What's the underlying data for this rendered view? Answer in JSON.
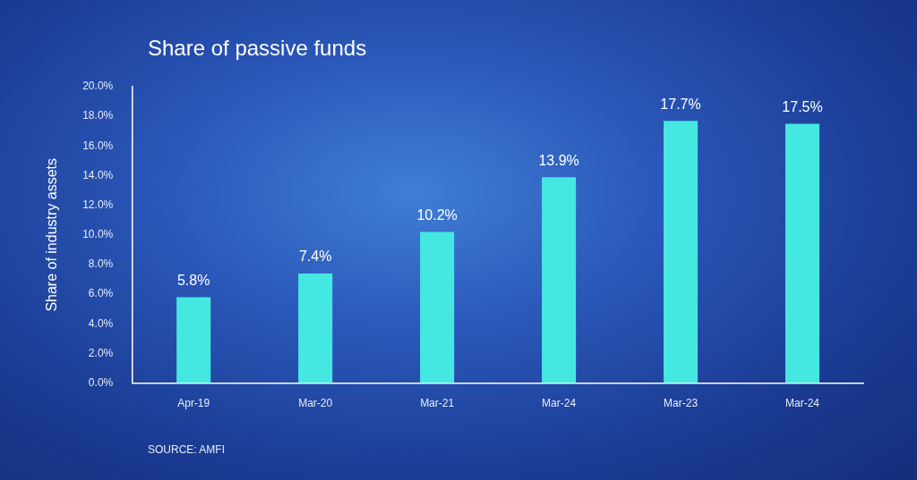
{
  "chart_data": {
    "type": "bar",
    "title": "Share of passive funds",
    "y_label": "Share of industry assets",
    "source": "SOURCE: AMFI",
    "categories": [
      "Apr-19",
      "Mar-20",
      "Mar-21",
      "Mar-24",
      "Mar-23",
      "Mar-24"
    ],
    "values": [
      5.8,
      7.4,
      10.2,
      13.9,
      17.7,
      17.5
    ],
    "value_labels": [
      "5.8%",
      "7.4%",
      "10.2%",
      "13.9%",
      "17.7%",
      "17.5%"
    ],
    "color": "#45e8e0",
    "ylim": [
      0,
      20
    ],
    "yticks": [
      {
        "value": 0,
        "label": "0.0%"
      },
      {
        "value": 2,
        "label": "2.0%"
      },
      {
        "value": 4,
        "label": "4.0%"
      },
      {
        "value": 6,
        "label": "6.0%"
      },
      {
        "value": 8,
        "label": "8.0%"
      },
      {
        "value": 10,
        "label": "10.0%"
      },
      {
        "value": 12,
        "label": "12.0%"
      },
      {
        "value": 14,
        "label": "14.0%"
      },
      {
        "value": 16,
        "label": "16.0%"
      },
      {
        "value": 18,
        "label": "18.0%"
      },
      {
        "value": 20,
        "label": "20.0%"
      }
    ],
    "grid": false,
    "data_labels": true
  }
}
